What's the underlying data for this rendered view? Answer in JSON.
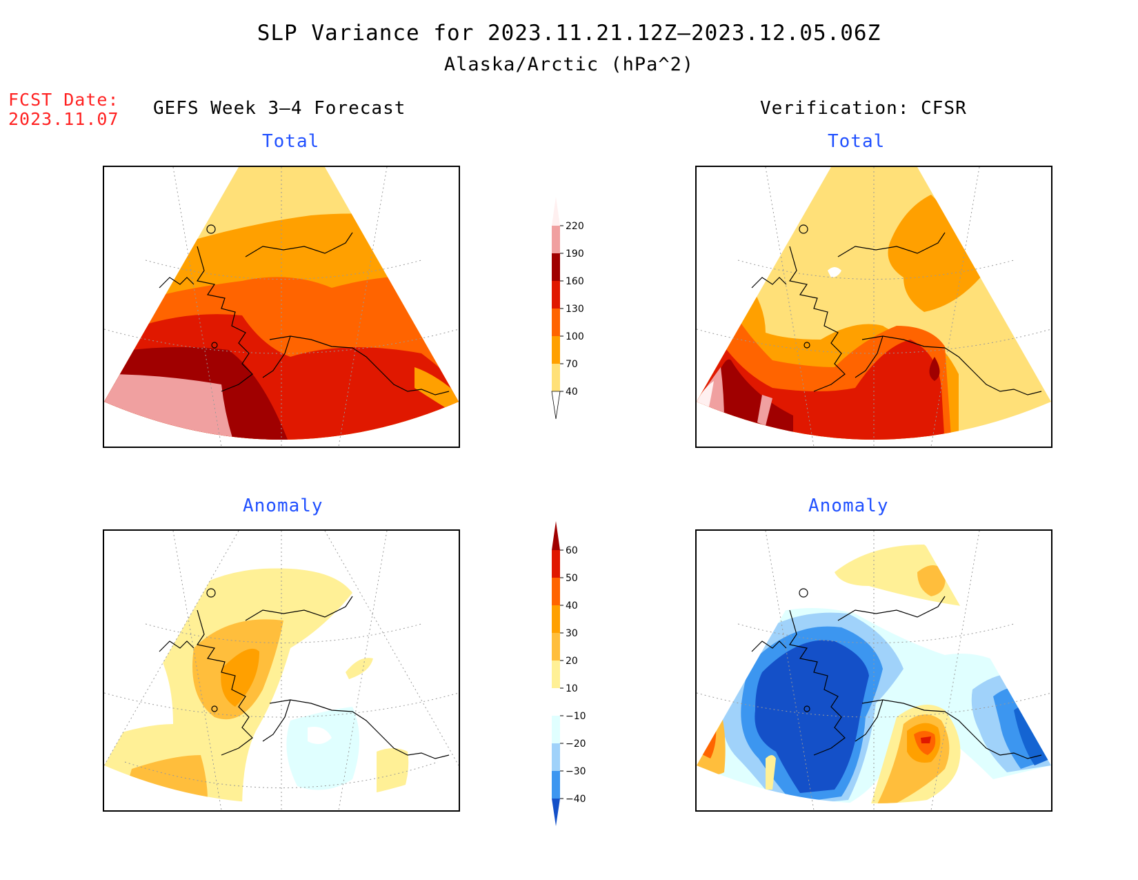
{
  "title": "SLP Variance for 2023.11.21.12Z–2023.12.05.06Z",
  "subtitle": "Alaska/Arctic (hPa^2)",
  "fcst_date": {
    "label": "FCST Date:",
    "value": "2023.11.07"
  },
  "left_header": "GEFS Week 3–4 Forecast",
  "right_header": "Verification: CFSR",
  "panels": {
    "forecast_total_label": "Total",
    "verification_total_label": "Total",
    "forecast_anomaly_label": "Anomaly",
    "verification_anomaly_label": "Anomaly"
  },
  "total_colorbar": {
    "ticks": [
      "220",
      "190",
      "160",
      "130",
      "100",
      "70",
      "40"
    ],
    "colors": [
      "#fff0f0",
      "#f0a0a0",
      "#a00000",
      "#e01800",
      "#ff6400",
      "#ffa000",
      "#ffe078",
      "#ffffff"
    ]
  },
  "anomaly_colorbar": {
    "ticks": [
      "60",
      "50",
      "40",
      "30",
      "20",
      "10",
      "−10",
      "−20",
      "−30",
      "−40"
    ],
    "colors": [
      "#a00000",
      "#e01800",
      "#ff6400",
      "#ffa000",
      "#ffbe3c",
      "#fff096",
      "#ffffff",
      "#e0ffff",
      "#a0d2fa",
      "#3c96f0",
      "#1464d2",
      "#1450c8"
    ]
  },
  "palette": {
    "label_blue": "#2050ff",
    "fcst_red": "#ff2020"
  }
}
